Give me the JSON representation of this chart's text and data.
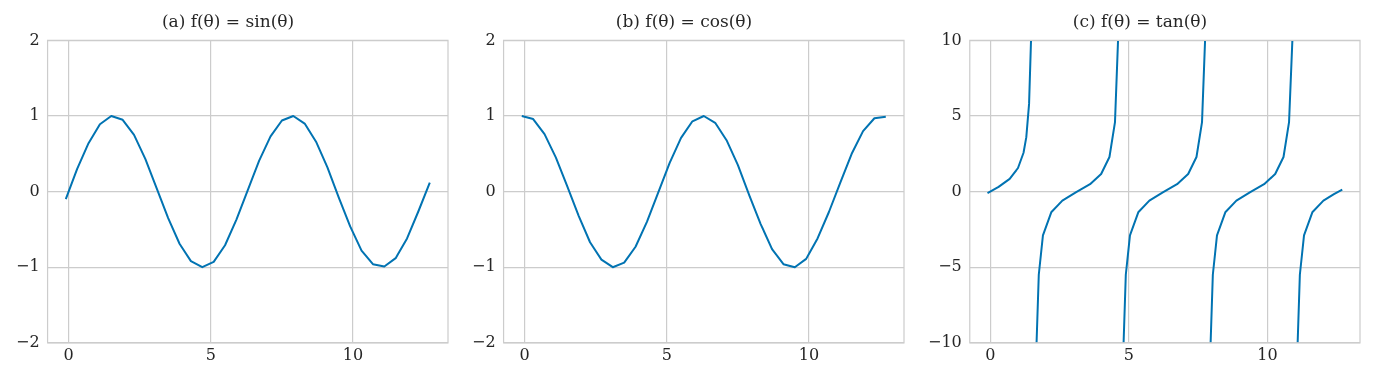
{
  "chart_data": [
    {
      "type": "line",
      "title": "(a) f(θ) = sin(θ)",
      "x": [
        -0.1,
        0.3,
        0.7,
        1.1,
        1.5,
        1.9,
        2.3,
        2.7,
        3.1,
        3.5,
        3.9,
        4.3,
        4.7,
        5.1,
        5.5,
        5.9,
        6.3,
        6.7,
        7.1,
        7.5,
        7.9,
        8.3,
        8.7,
        9.1,
        9.5,
        9.9,
        10.3,
        10.7,
        11.1,
        11.5,
        11.9,
        12.3,
        12.7
      ],
      "series": [
        {
          "color": "#0173b2",
          "values": [
            -0.1,
            0.3,
            0.64,
            0.89,
            1.0,
            0.95,
            0.75,
            0.43,
            0.04,
            -0.35,
            -0.69,
            -0.92,
            -1.0,
            -0.93,
            -0.71,
            -0.37,
            0.02,
            0.41,
            0.73,
            0.94,
            1.0,
            0.9,
            0.66,
            0.32,
            -0.08,
            -0.46,
            -0.78,
            -0.96,
            -0.99,
            -0.88,
            -0.62,
            -0.26,
            0.12
          ]
        }
      ],
      "xlim": [
        -0.74,
        13.34
      ],
      "ylim": [
        -2,
        2
      ],
      "xticks": [
        0,
        5,
        10
      ],
      "yticks": [
        -2,
        -1,
        0,
        1,
        2
      ],
      "grid": true
    },
    {
      "type": "line",
      "title": "(b) f(θ) = cos(θ)",
      "x": [
        -0.1,
        0.3,
        0.7,
        1.1,
        1.5,
        1.9,
        2.3,
        2.7,
        3.1,
        3.5,
        3.9,
        4.3,
        4.7,
        5.1,
        5.5,
        5.9,
        6.3,
        6.7,
        7.1,
        7.5,
        7.9,
        8.3,
        8.7,
        9.1,
        9.5,
        9.9,
        10.3,
        10.7,
        11.1,
        11.5,
        11.9,
        12.3,
        12.7
      ],
      "series": [
        {
          "color": "#0173b2",
          "values": [
            1.0,
            0.96,
            0.76,
            0.45,
            0.07,
            -0.32,
            -0.67,
            -0.9,
            -1.0,
            -0.94,
            -0.73,
            -0.4,
            -0.01,
            0.38,
            0.71,
            0.93,
            1.0,
            0.91,
            0.68,
            0.35,
            -0.05,
            -0.43,
            -0.76,
            -0.96,
            -1.0,
            -0.89,
            -0.62,
            -0.27,
            0.12,
            0.5,
            0.8,
            0.97,
            0.99
          ]
        }
      ],
      "xlim": [
        -0.74,
        13.34
      ],
      "ylim": [
        -2,
        2
      ],
      "xticks": [
        0,
        5,
        10
      ],
      "yticks": [
        -2,
        -1,
        0,
        1,
        2
      ],
      "grid": true
    },
    {
      "type": "line",
      "title": "(c) f(θ) = tan(θ)",
      "x": [
        -0.1,
        0.3,
        0.7,
        1.0,
        1.2,
        1.3,
        1.4,
        1.47,
        1.57,
        1.67,
        1.75,
        1.9,
        2.2,
        2.6,
        3.1,
        3.6,
        4.0,
        4.3,
        4.5,
        4.61,
        4.71,
        4.81,
        4.89,
        5.04,
        5.34,
        5.74,
        6.24,
        6.74,
        7.14,
        7.44,
        7.64,
        7.75,
        7.85,
        7.95,
        8.03,
        8.18,
        8.48,
        8.88,
        9.38,
        9.88,
        10.28,
        10.58,
        10.78,
        10.9,
        11.0,
        11.09,
        11.17,
        11.32,
        11.62,
        12.02,
        12.4,
        12.7
      ],
      "series": [
        {
          "color": "#0173b2",
          "values": [
            -0.1,
            0.31,
            0.84,
            1.56,
            2.57,
            3.6,
            5.8,
            10,
            null,
            -10,
            -5.5,
            -2.9,
            -1.37,
            -0.6,
            -0.04,
            0.49,
            1.16,
            2.29,
            4.6,
            10,
            null,
            -10,
            -5.5,
            -2.9,
            -1.37,
            -0.6,
            -0.04,
            0.49,
            1.16,
            2.29,
            4.6,
            10,
            null,
            -10,
            -5.5,
            -2.9,
            -1.37,
            -0.6,
            -0.04,
            0.49,
            1.16,
            2.29,
            4.6,
            10,
            null,
            -10,
            -5.5,
            -2.9,
            -1.37,
            -0.6,
            -0.17,
            0.13
          ]
        }
      ],
      "xlim": [
        -0.74,
        13.34
      ],
      "ylim": [
        -10,
        10
      ],
      "xticks": [
        0,
        5,
        10
      ],
      "yticks": [
        -10,
        -5,
        0,
        5,
        10
      ],
      "grid": true
    }
  ]
}
